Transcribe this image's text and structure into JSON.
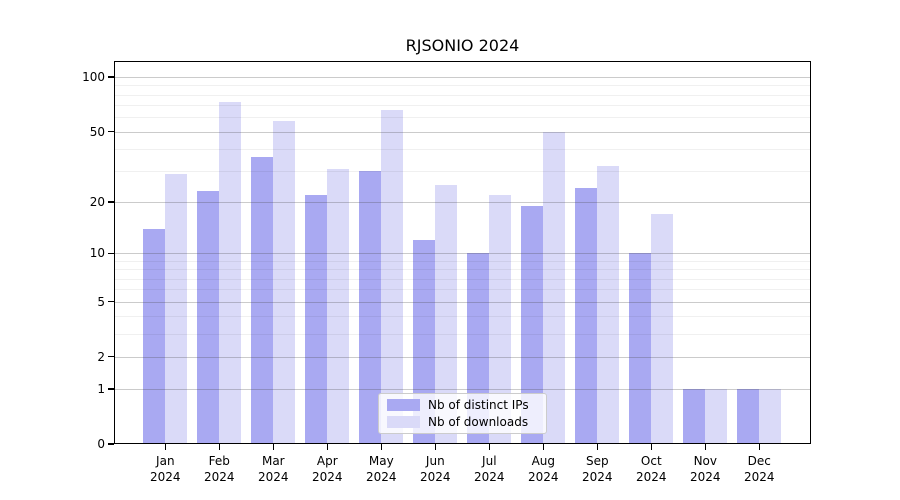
{
  "title": "RJSONIO 2024",
  "chart_data": {
    "type": "bar",
    "title": "RJSONIO 2024",
    "categories": [
      "Jan",
      "Feb",
      "Mar",
      "Apr",
      "May",
      "Jun",
      "Jul",
      "Aug",
      "Sep",
      "Oct",
      "Nov",
      "Dec"
    ],
    "year": "2024",
    "series": [
      {
        "name": "Nb of distinct IPs",
        "color": "#a9a9f2",
        "values": [
          14,
          23,
          36,
          22,
          30,
          12,
          10,
          19,
          24,
          10,
          1,
          1
        ]
      },
      {
        "name": "Nb of downloads",
        "color": "#dadaf8",
        "values": [
          29,
          73,
          57,
          31,
          66,
          25,
          22,
          50,
          32,
          17,
          1,
          1
        ]
      }
    ],
    "y_scale": "log1p",
    "y_axis_tick_labels": [
      100,
      50,
      20,
      10,
      5,
      2,
      1,
      0
    ],
    "y_major_gridlines": [
      1,
      2,
      5,
      10,
      20,
      50,
      100
    ],
    "y_minor_gridlines": [
      3,
      4,
      6,
      7,
      8,
      9,
      30,
      40,
      60,
      70,
      80,
      90
    ],
    "ylim_top_value": 123,
    "grid": true,
    "legend_position": "bottom-center",
    "legend_entries": [
      "Nb of distinct IPs",
      "Nb of downloads"
    ]
  },
  "colors": {
    "bar_distinct_ips": "#a9a9f2",
    "bar_downloads": "#dadaf8",
    "major_gridline": "#c6c6c6",
    "minor_gridline": "#efefef",
    "axis": "#000000",
    "legend_border": "#cccccc",
    "background": "#ffffff"
  }
}
